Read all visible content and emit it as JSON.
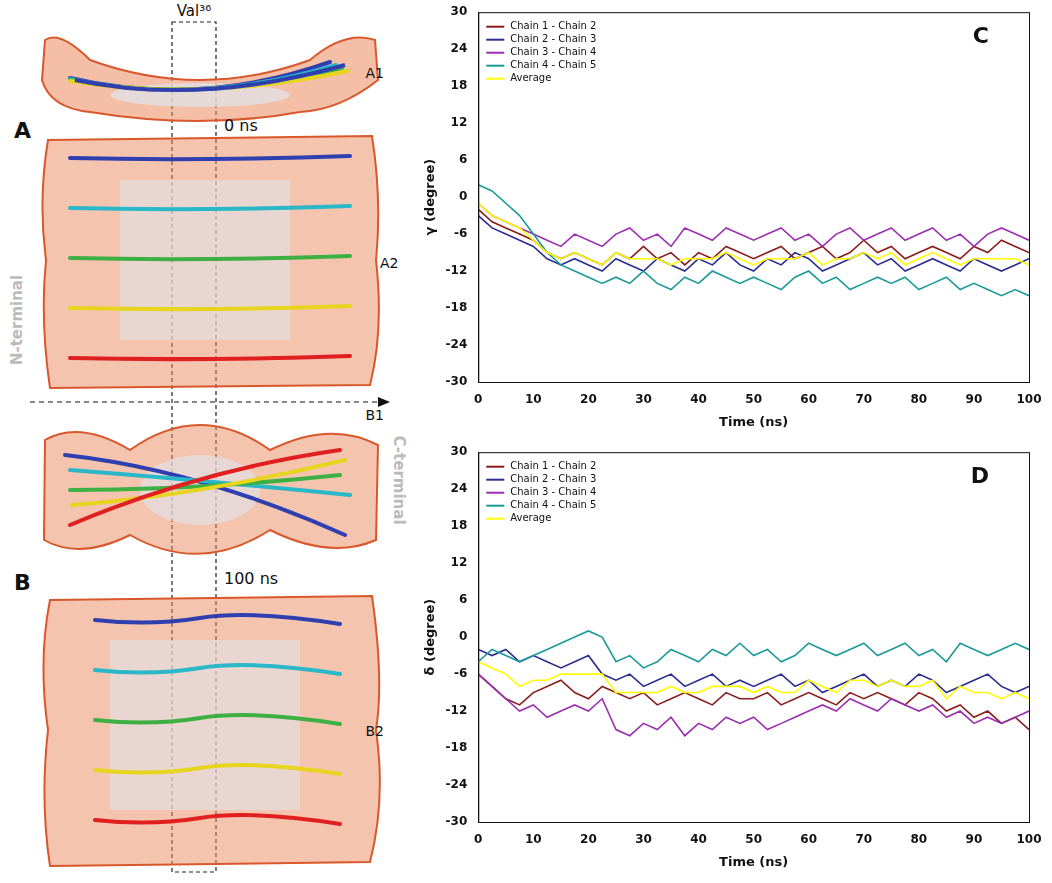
{
  "diagram": {
    "residue": "Val³⁶",
    "direction": {
      "start": "N-terminal",
      "end": "C-terminal"
    },
    "panels": [
      {
        "letter": "A",
        "time": "0 ns",
        "views": [
          "A1",
          "A2"
        ]
      },
      {
        "letter": "B",
        "time": "100 ns",
        "views": [
          "B1",
          "B2"
        ]
      }
    ]
  },
  "chart_data": [
    {
      "panel": "C",
      "type": "line",
      "x_label": "Time (ns)",
      "y_label": "γ (degree)",
      "x": [
        0,
        2.5,
        5,
        7.5,
        10,
        12.5,
        15,
        17.5,
        20,
        22.5,
        25,
        27.5,
        30,
        32.5,
        35,
        37.5,
        40,
        42.5,
        45,
        47.5,
        50,
        52.5,
        55,
        57.5,
        60,
        62.5,
        65,
        67.5,
        70,
        72.5,
        75,
        77.5,
        80,
        82.5,
        85,
        87.5,
        90,
        92.5,
        95,
        97.5,
        100
      ],
      "xlim": [
        0,
        100
      ],
      "xticks": [
        0,
        10,
        20,
        30,
        40,
        50,
        60,
        70,
        80,
        90,
        100
      ],
      "ylim": [
        -30,
        30
      ],
      "yticks": [
        -30,
        -24,
        -18,
        -12,
        -6,
        0,
        6,
        12,
        18,
        24,
        30
      ],
      "grid": false,
      "legend": "top-left",
      "series": [
        {
          "name": "Chain 1 - Chain 2",
          "color": "#8b1c1c",
          "values": [
            -2,
            -4,
            -5,
            -6,
            -7,
            -9,
            -10,
            -9,
            -10,
            -11,
            -9,
            -10,
            -8,
            -10,
            -9,
            -11,
            -9,
            -10,
            -8,
            -9,
            -10,
            -9,
            -8,
            -10,
            -9,
            -8,
            -10,
            -9,
            -7,
            -9,
            -8,
            -10,
            -9,
            -8,
            -9,
            -10,
            -8,
            -9,
            -7,
            -8,
            -9
          ]
        },
        {
          "name": "Chain 2 - Chain 3",
          "color": "#2b2d8f",
          "values": [
            -3,
            -5,
            -6,
            -7,
            -8,
            -10,
            -11,
            -10,
            -11,
            -12,
            -10,
            -11,
            -12,
            -10,
            -11,
            -12,
            -10,
            -11,
            -9,
            -11,
            -12,
            -10,
            -11,
            -9,
            -10,
            -12,
            -11,
            -10,
            -9,
            -11,
            -10,
            -12,
            -11,
            -10,
            -11,
            -12,
            -10,
            -11,
            -12,
            -11,
            -10
          ]
        },
        {
          "name": "Chain 3 - Chain 4",
          "color": "#9c2fb0",
          "values": [
            -1,
            -3,
            -4,
            -5,
            -6,
            -7,
            -8,
            -6,
            -7,
            -8,
            -6,
            -5,
            -7,
            -6,
            -8,
            -5,
            -6,
            -7,
            -5,
            -6,
            -7,
            -6,
            -5,
            -7,
            -6,
            -8,
            -6,
            -5,
            -7,
            -6,
            -5,
            -7,
            -6,
            -5,
            -7,
            -6,
            -8,
            -6,
            -5,
            -6,
            -7
          ]
        },
        {
          "name": "Chain 4 - Chain 5",
          "color": "#1a9a98",
          "values": [
            2,
            1,
            -1,
            -3,
            -6,
            -9,
            -11,
            -12,
            -13,
            -14,
            -13,
            -14,
            -12,
            -14,
            -15,
            -13,
            -14,
            -12,
            -13,
            -14,
            -13,
            -14,
            -15,
            -13,
            -12,
            -14,
            -13,
            -15,
            -14,
            -13,
            -14,
            -13,
            -15,
            -14,
            -13,
            -15,
            -14,
            -15,
            -16,
            -15,
            -16
          ]
        },
        {
          "name": "Average",
          "color": "#ffff00",
          "values": [
            -1,
            -3,
            -4,
            -5,
            -7,
            -9,
            -10,
            -9,
            -10,
            -11,
            -9,
            -10,
            -10,
            -10,
            -11,
            -10,
            -10,
            -10,
            -9,
            -10,
            -11,
            -10,
            -10,
            -10,
            -9,
            -11,
            -10,
            -10,
            -9,
            -10,
            -9,
            -11,
            -10,
            -9,
            -10,
            -11,
            -10,
            -10,
            -10,
            -10,
            -11
          ]
        }
      ]
    },
    {
      "panel": "D",
      "type": "line",
      "x_label": "Time (ns)",
      "y_label": "δ (degree)",
      "x": [
        0,
        2.5,
        5,
        7.5,
        10,
        12.5,
        15,
        17.5,
        20,
        22.5,
        25,
        27.5,
        30,
        32.5,
        35,
        37.5,
        40,
        42.5,
        45,
        47.5,
        50,
        52.5,
        55,
        57.5,
        60,
        62.5,
        65,
        67.5,
        70,
        72.5,
        75,
        77.5,
        80,
        82.5,
        85,
        87.5,
        90,
        92.5,
        95,
        97.5,
        100
      ],
      "xlim": [
        0,
        100
      ],
      "xticks": [
        0,
        10,
        20,
        30,
        40,
        50,
        60,
        70,
        80,
        90,
        100
      ],
      "ylim": [
        -30,
        30
      ],
      "yticks": [
        -30,
        -24,
        -18,
        -12,
        -6,
        0,
        6,
        12,
        18,
        24,
        30
      ],
      "grid": false,
      "legend": "top-left",
      "series": [
        {
          "name": "Chain 1 - Chain 2",
          "color": "#8b1c1c",
          "values": [
            -6,
            -8,
            -10,
            -11,
            -9,
            -8,
            -7,
            -9,
            -10,
            -8,
            -9,
            -10,
            -9,
            -11,
            -10,
            -9,
            -10,
            -11,
            -9,
            -10,
            -10,
            -9,
            -11,
            -10,
            -9,
            -10,
            -11,
            -9,
            -10,
            -9,
            -10,
            -11,
            -9,
            -10,
            -12,
            -11,
            -13,
            -12,
            -14,
            -13,
            -15
          ]
        },
        {
          "name": "Chain 2 - Chain 3",
          "color": "#2b2d8f",
          "values": [
            -2,
            -3,
            -2,
            -4,
            -3,
            -4,
            -5,
            -4,
            -3,
            -6,
            -7,
            -6,
            -8,
            -7,
            -6,
            -8,
            -7,
            -6,
            -8,
            -7,
            -8,
            -7,
            -6,
            -8,
            -7,
            -9,
            -8,
            -7,
            -6,
            -8,
            -7,
            -8,
            -6,
            -7,
            -9,
            -8,
            -7,
            -6,
            -8,
            -9,
            -8
          ]
        },
        {
          "name": "Chain 3 - Chain 4",
          "color": "#9c2fb0",
          "values": [
            -6,
            -8,
            -10,
            -12,
            -11,
            -13,
            -12,
            -11,
            -12,
            -10,
            -15,
            -16,
            -14,
            -15,
            -13,
            -16,
            -14,
            -15,
            -13,
            -14,
            -13,
            -15,
            -14,
            -13,
            -12,
            -11,
            -12,
            -10,
            -11,
            -12,
            -10,
            -11,
            -12,
            -11,
            -13,
            -12,
            -14,
            -13,
            -14,
            -13,
            -12
          ]
        },
        {
          "name": "Chain 4 - Chain 5",
          "color": "#1a9a98",
          "values": [
            -4,
            -2,
            -3,
            -4,
            -3,
            -2,
            -1,
            0,
            1,
            0,
            -4,
            -3,
            -5,
            -4,
            -2,
            -3,
            -4,
            -2,
            -3,
            -1,
            -3,
            -2,
            -4,
            -3,
            -1,
            -2,
            -3,
            -2,
            -1,
            -3,
            -2,
            -1,
            -3,
            -2,
            -4,
            -1,
            -2,
            -3,
            -2,
            -1,
            -2
          ]
        },
        {
          "name": "Average",
          "color": "#ffff00",
          "values": [
            -4,
            -5,
            -6,
            -8,
            -7,
            -7,
            -6,
            -6,
            -6,
            -6,
            -9,
            -9,
            -9,
            -9,
            -8,
            -9,
            -9,
            -8,
            -8,
            -8,
            -9,
            -8,
            -9,
            -9,
            -7,
            -8,
            -9,
            -7,
            -7,
            -8,
            -7,
            -8,
            -8,
            -7,
            -10,
            -8,
            -9,
            -9,
            -10,
            -9,
            -10
          ]
        }
      ]
    }
  ]
}
